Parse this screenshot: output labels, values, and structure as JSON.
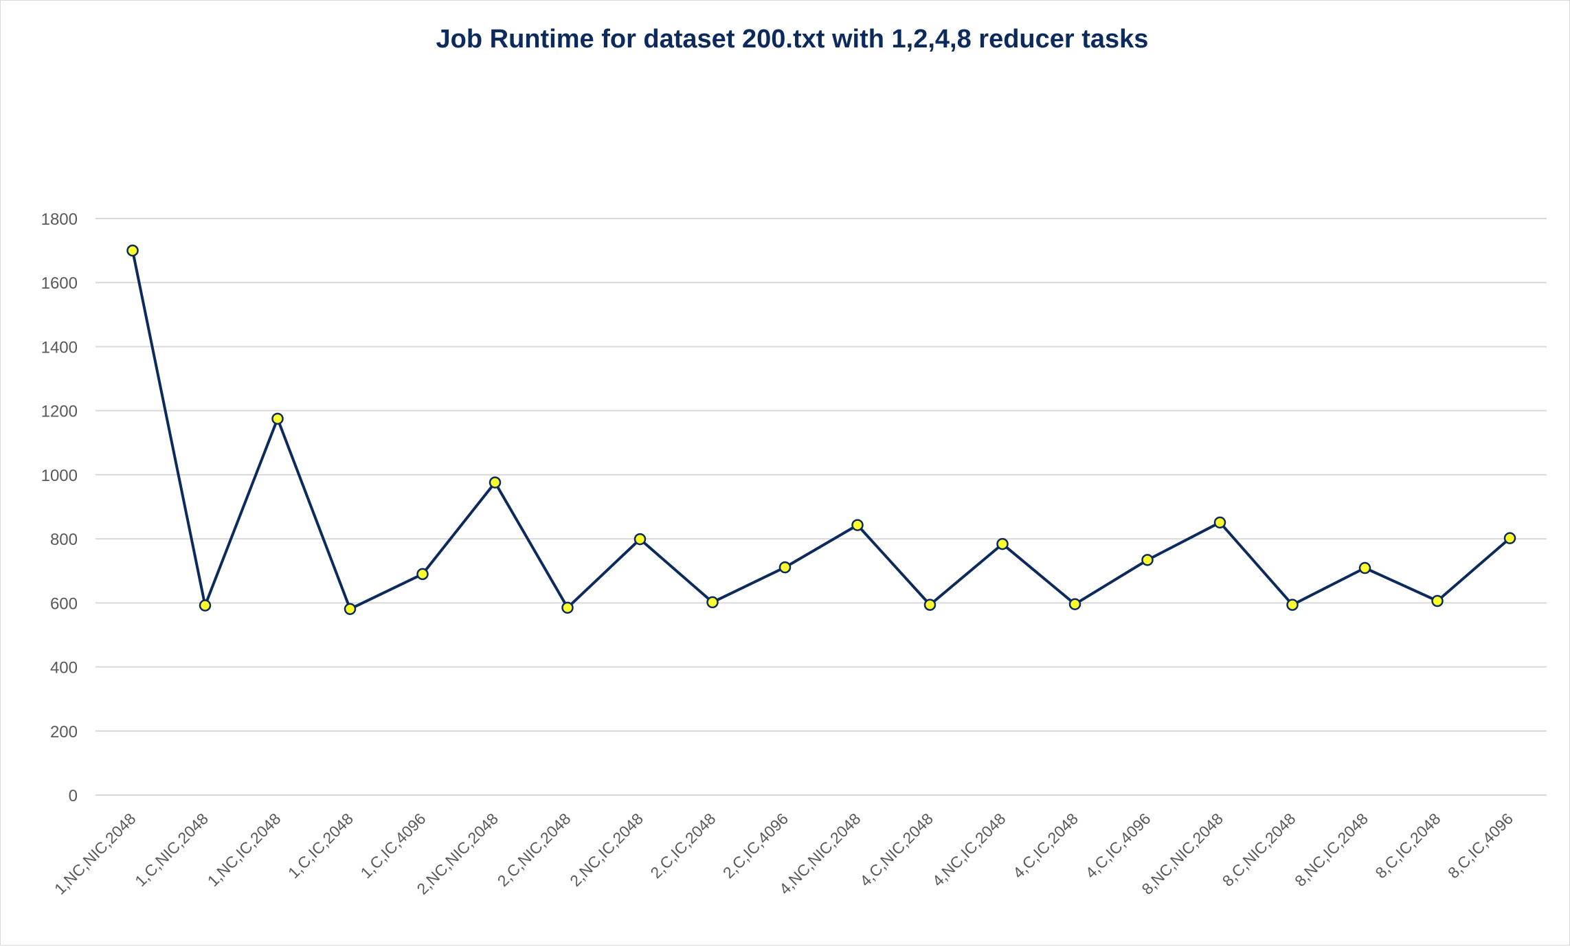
{
  "chart_data": {
    "type": "line",
    "title": "Job Runtime for dataset 200.txt with 1,2,4,8 reducer tasks",
    "xlabel": "",
    "ylabel": "",
    "ylim": [
      0,
      1800
    ],
    "y_ticks": [
      0,
      200,
      400,
      600,
      800,
      1000,
      1200,
      1400,
      1600,
      1800
    ],
    "grid": true,
    "legend": "none",
    "categories": [
      "1,NC,NIC,2048",
      "1,C,NIC,2048",
      "1,NC,IC,2048",
      "1,C,IC,2048",
      "1,C,IC,4096",
      "2,NC,NIC,2048",
      "2,C,NIC,2048",
      "2,NC,IC,2048",
      "2,C,IC,2048",
      "2,C,IC,4096",
      "4,NC,NIC,2048",
      "4,C,NIC,2048",
      "4,NC,IC,2048",
      "4,C,IC,2048",
      "4,C,IC,4096",
      "8,NC,NIC,2048",
      "8,C,NIC,2048",
      "8,NC,IC,2048",
      "8,C,IC,2048",
      "8,C,IC,4096"
    ],
    "series": [
      {
        "values": [
          1700,
          592,
          1175,
          581,
          690,
          976,
          585,
          799,
          602,
          711,
          843,
          594,
          784,
          596,
          734,
          851,
          594,
          709,
          606,
          802
        ]
      }
    ],
    "colors": {
      "line": "#0d2a5c",
      "marker_fill": "#ffff2e",
      "marker_stroke": "#0d2a5c",
      "title": "#0d2a5c",
      "grid": "#d9d9d9",
      "labels": "#595959"
    }
  }
}
